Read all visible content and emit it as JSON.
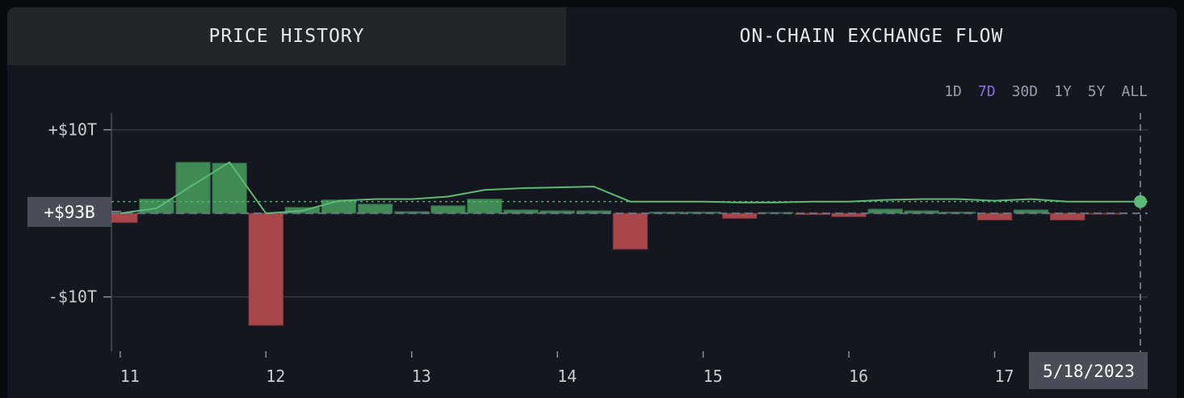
{
  "tabs": {
    "price_history": "PRICE HISTORY",
    "exchange_flow": "ON-CHAIN EXCHANGE FLOW"
  },
  "ranges": [
    "1D",
    "7D",
    "30D",
    "1Y",
    "5Y",
    "ALL"
  ],
  "active_range": "7D",
  "current_value_label": "+$93B",
  "hover_date": "5/18/2023",
  "colors": {
    "inflow": "#3f8a55",
    "outflow": "#a8474b",
    "line": "#5dba74",
    "active_range": "#8e6ee8"
  },
  "chart_data": {
    "type": "bar",
    "title": "",
    "xlabel": "",
    "ylabel": "",
    "y_unit": "USD (billions)",
    "ylim": [
      -16500,
      12000
    ],
    "xlim": [
      10.94,
      18.05
    ],
    "y_ticks": [
      {
        "value": 10000,
        "label": "+$10T"
      },
      {
        "value": -10000,
        "label": "-$10T"
      }
    ],
    "x_ticks": [
      11,
      12,
      13,
      14,
      15,
      16,
      17
    ],
    "grid": true,
    "bar_width_days": 0.235,
    "bars": [
      {
        "x": 11.0,
        "value": -1100
      },
      {
        "x": 11.25,
        "value": 1700
      },
      {
        "x": 11.5,
        "value": 6100
      },
      {
        "x": 11.75,
        "value": 6000
      },
      {
        "x": 12.0,
        "value": -13400
      },
      {
        "x": 12.25,
        "value": 700
      },
      {
        "x": 12.5,
        "value": 1600
      },
      {
        "x": 12.75,
        "value": 1100
      },
      {
        "x": 13.0,
        "value": 200
      },
      {
        "x": 13.25,
        "value": 900
      },
      {
        "x": 13.5,
        "value": 1700
      },
      {
        "x": 13.75,
        "value": 400
      },
      {
        "x": 14.0,
        "value": 300
      },
      {
        "x": 14.25,
        "value": 300
      },
      {
        "x": 14.5,
        "value": -4300
      },
      {
        "x": 14.75,
        "value": 150
      },
      {
        "x": 15.0,
        "value": 150
      },
      {
        "x": 15.25,
        "value": -600
      },
      {
        "x": 15.5,
        "value": 100
      },
      {
        "x": 15.75,
        "value": -150
      },
      {
        "x": 16.0,
        "value": -400
      },
      {
        "x": 16.25,
        "value": 500
      },
      {
        "x": 16.5,
        "value": 300
      },
      {
        "x": 16.75,
        "value": 150
      },
      {
        "x": 17.0,
        "value": -800
      },
      {
        "x": 17.25,
        "value": 400
      },
      {
        "x": 17.5,
        "value": -800
      },
      {
        "x": 17.75,
        "value": -100
      }
    ],
    "line": {
      "x": [
        11.0,
        11.25,
        11.5,
        11.75,
        12.0,
        12.25,
        12.5,
        12.75,
        13.0,
        13.25,
        13.5,
        13.75,
        14.0,
        14.25,
        14.5,
        14.75,
        15.0,
        15.25,
        15.5,
        15.75,
        16.0,
        16.25,
        16.5,
        16.75,
        17.0,
        17.25,
        17.5,
        17.75,
        18.0
      ],
      "values": [
        0,
        600,
        3400,
        6100,
        0,
        300,
        1500,
        1700,
        1700,
        2000,
        2800,
        3000,
        3100,
        3200,
        1400,
        1400,
        1400,
        1300,
        1300,
        1400,
        1400,
        1600,
        1700,
        1700,
        1500,
        1700,
        1400,
        1400,
        1400
      ]
    },
    "current_value": 93,
    "hover_x": 18.0
  }
}
